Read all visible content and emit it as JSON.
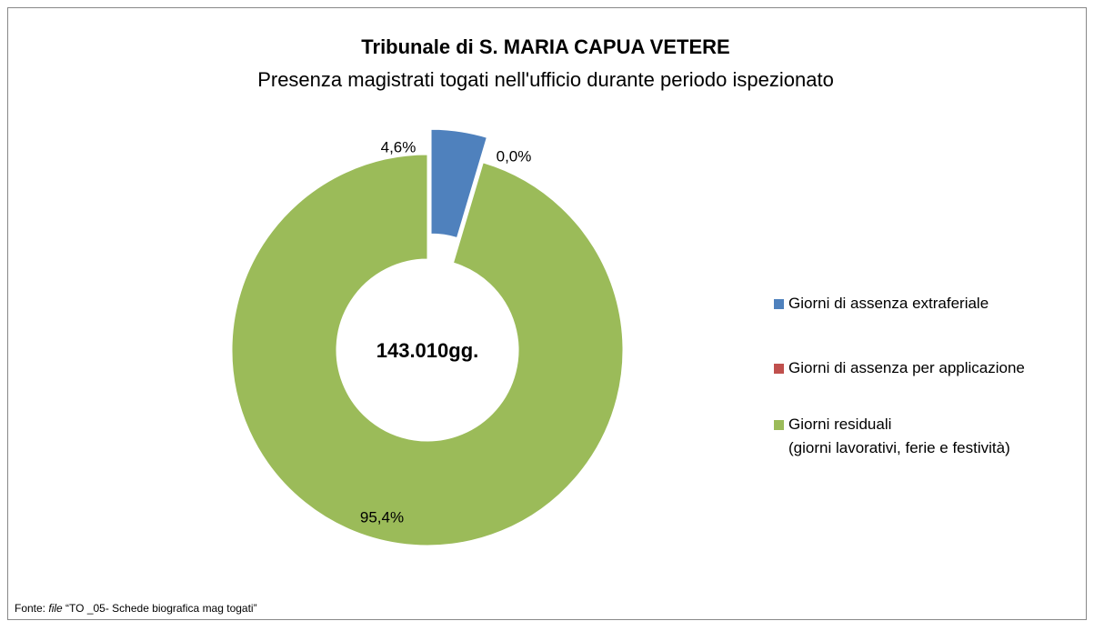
{
  "chart_data": {
    "type": "donut",
    "title": "Tribunale di S. MARIA CAPUA VETERE",
    "subtitle": "Presenza magistrati togati nell'ufficio durante periodo ispezionato",
    "center_label": "143.010gg.",
    "categories": [
      "Giorni di assenza extraferiale",
      "Giorni di assenza per applicazione",
      "Giorni residuali\n(giorni lavorativi, ferie e festività)"
    ],
    "values": [
      4.6,
      0.0,
      95.4
    ],
    "value_labels": [
      "4,6%",
      "0,0%",
      "95,4%"
    ],
    "colors": [
      "#4f81bd",
      "#c0504d",
      "#9bbb59"
    ],
    "explode": [
      true,
      false,
      false
    ],
    "legend": "right",
    "source": [
      "Fonte: ",
      "file",
      " “TO _05- Schede biografica mag togati”"
    ]
  }
}
